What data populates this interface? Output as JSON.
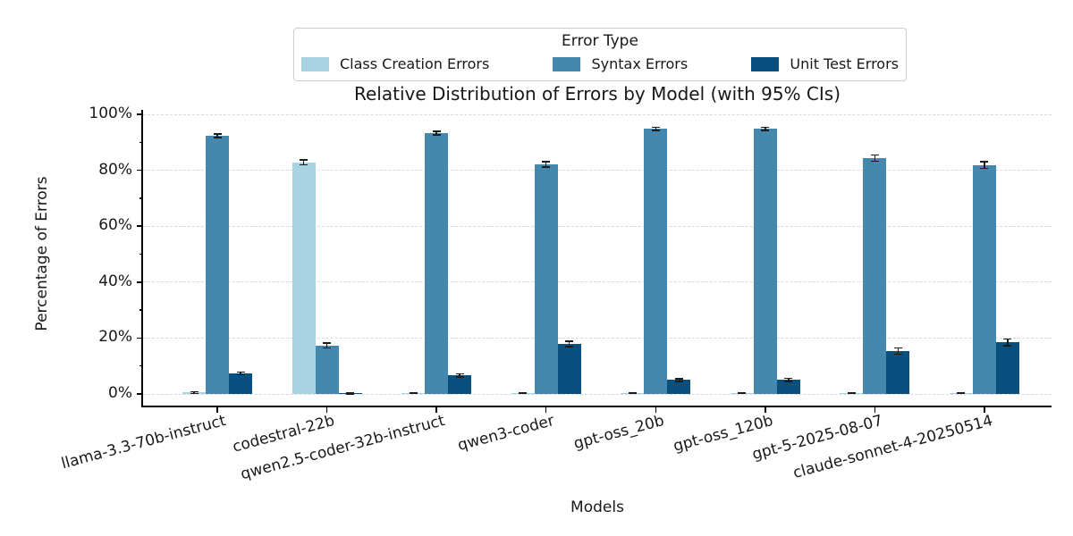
{
  "chart_data": {
    "type": "bar",
    "title": "Relative Distribution of Errors by Model (with 95% CIs)",
    "xlabel": "Models",
    "ylabel": "Percentage of Errors",
    "legend_title": "Error Type",
    "legend_position": "top-center",
    "grid": "horizontal-dashed",
    "ylim": [
      0,
      100
    ],
    "yticks": [
      {
        "value": 0,
        "label": "0%"
      },
      {
        "value": 20,
        "label": "20%"
      },
      {
        "value": 40,
        "label": "40%"
      },
      {
        "value": 60,
        "label": "60%"
      },
      {
        "value": 80,
        "label": "80%"
      },
      {
        "value": 100,
        "label": "100%"
      }
    ],
    "categories": [
      "llama-3.3-70b-instruct",
      "codestral-22b",
      "qwen2.5-coder-32b-instruct",
      "qwen3-coder",
      "gpt-oss_20b",
      "gpt-oss_120b",
      "gpt-5-2025-08-07",
      "claude-sonnet-4-20250514"
    ],
    "series": [
      {
        "name": "Class Creation Errors",
        "color": "#a8d3e2",
        "values": [
          0.5,
          82.8,
          0.3,
          0.3,
          0.3,
          0.3,
          0.3,
          0.3
        ],
        "ci95": [
          0.3,
          0.9,
          0.2,
          0.2,
          0.2,
          0.2,
          0.2,
          0.2
        ]
      },
      {
        "name": "Syntax Errors",
        "color": "#4489ad",
        "values": [
          92.3,
          17.3,
          93.3,
          82.1,
          94.8,
          94.8,
          84.4,
          81.8
        ],
        "ci95": [
          0.6,
          0.9,
          0.6,
          0.9,
          0.5,
          0.5,
          1.1,
          1.2
        ]
      },
      {
        "name": "Unit Test Errors",
        "color": "#09507f",
        "values": [
          7.3,
          0.2,
          6.6,
          17.9,
          5.0,
          5.0,
          15.3,
          18.5
        ],
        "ci95": [
          0.5,
          0.2,
          0.6,
          0.9,
          0.5,
          0.6,
          1.1,
          1.2
        ]
      }
    ]
  }
}
